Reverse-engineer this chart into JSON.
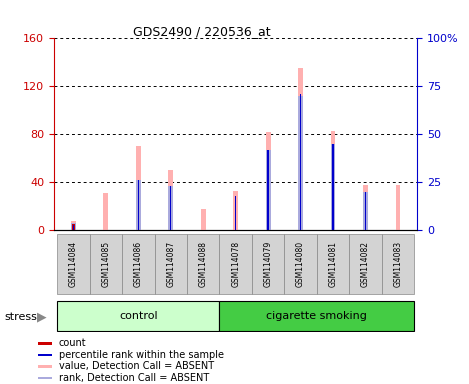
{
  "title": "GDS2490 / 220536_at",
  "samples": [
    "GSM114084",
    "GSM114085",
    "GSM114086",
    "GSM114087",
    "GSM114088",
    "GSM114078",
    "GSM114079",
    "GSM114080",
    "GSM114081",
    "GSM114082",
    "GSM114083"
  ],
  "control_indices": [
    0,
    1,
    2,
    3,
    4
  ],
  "smoking_indices": [
    5,
    6,
    7,
    8,
    9,
    10
  ],
  "value_absent": [
    8,
    31,
    70,
    50,
    18,
    33,
    82,
    135,
    83,
    38,
    38
  ],
  "rank_absent_pct": [
    4,
    0,
    26,
    23,
    0,
    0,
    42,
    70,
    45,
    20,
    0
  ],
  "count_red": [
    5,
    0,
    0,
    0,
    0,
    0,
    0,
    0,
    0,
    0,
    0
  ],
  "percentile_blue_pct": [
    3,
    0,
    26,
    23,
    0,
    18,
    42,
    71,
    45,
    20,
    0
  ],
  "ylim_left": [
    0,
    160
  ],
  "ylim_right": [
    0,
    100
  ],
  "yticks_left": [
    0,
    40,
    80,
    120,
    160
  ],
  "yticks_right": [
    0,
    25,
    50,
    75,
    100
  ],
  "yticklabels_left": [
    "0",
    "40",
    "80",
    "120",
    "160"
  ],
  "yticklabels_right": [
    "0",
    "25",
    "50",
    "75",
    "100%"
  ],
  "bar_width": 0.15,
  "color_value_absent": "#FFB0B0",
  "color_rank_absent": "#AAAADD",
  "color_count": "#CC0000",
  "color_percentile": "#0000CC",
  "color_control_bg": "#CCFFCC",
  "color_smoking_bg": "#44CC44",
  "color_sample_bg": "#D3D3D3",
  "color_left_axis": "#CC0000",
  "color_right_axis": "#0000CC",
  "legend_items": [
    "count",
    "percentile rank within the sample",
    "value, Detection Call = ABSENT",
    "rank, Detection Call = ABSENT"
  ],
  "legend_colors": [
    "#CC0000",
    "#0000CC",
    "#FFB0B0",
    "#AAAADD"
  ]
}
